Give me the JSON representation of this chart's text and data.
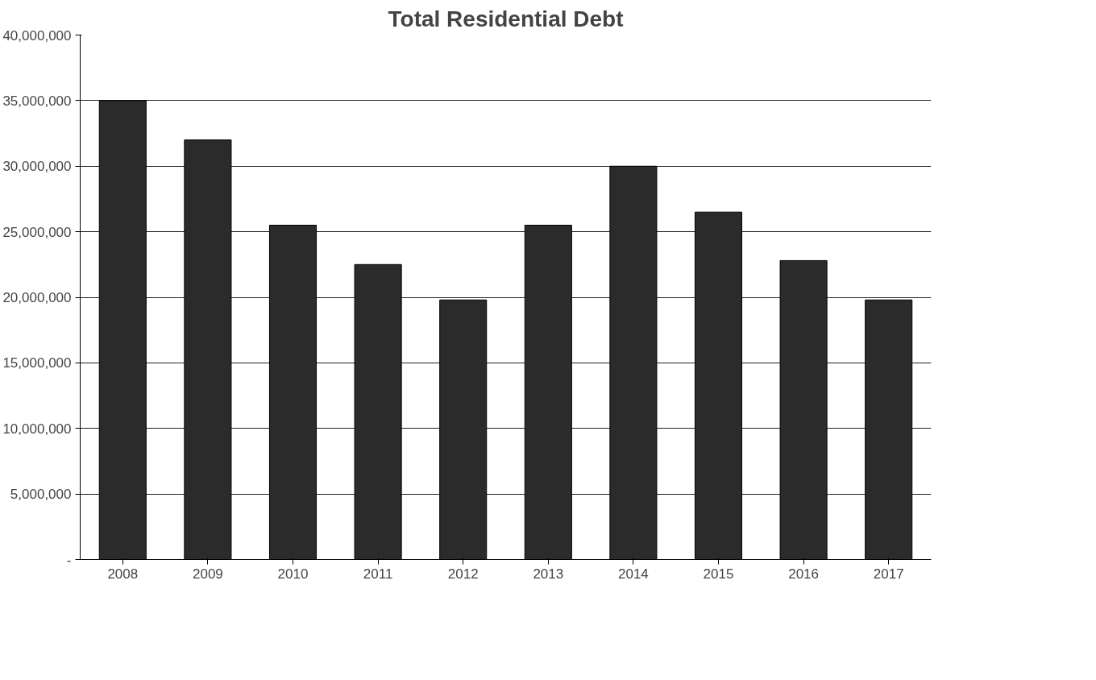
{
  "chart_data": {
    "type": "bar",
    "title": "Total Residential Debt",
    "categories": [
      "2008",
      "2009",
      "2010",
      "2011",
      "2012",
      "2013",
      "2014",
      "2015",
      "2016",
      "2017"
    ],
    "values": [
      35000000,
      32000000,
      25500000,
      22500000,
      19800000,
      25500000,
      30000000,
      26500000,
      22800000,
      19800000
    ],
    "color": "#2b2b2b",
    "ylim": [
      0,
      40000000
    ],
    "yticks": [
      {
        "value": 0,
        "label": "-"
      },
      {
        "value": 5000000,
        "label": "5,000,000"
      },
      {
        "value": 10000000,
        "label": "10,000,000"
      },
      {
        "value": 15000000,
        "label": "15,000,000"
      },
      {
        "value": 20000000,
        "label": "20,000,000"
      },
      {
        "value": 25000000,
        "label": "25,000,000"
      },
      {
        "value": 30000000,
        "label": "30,000,000"
      },
      {
        "value": 35000000,
        "label": "35,000,000"
      },
      {
        "value": 40000000,
        "label": "40,000,000"
      }
    ],
    "grid": "y",
    "legend": false
  }
}
